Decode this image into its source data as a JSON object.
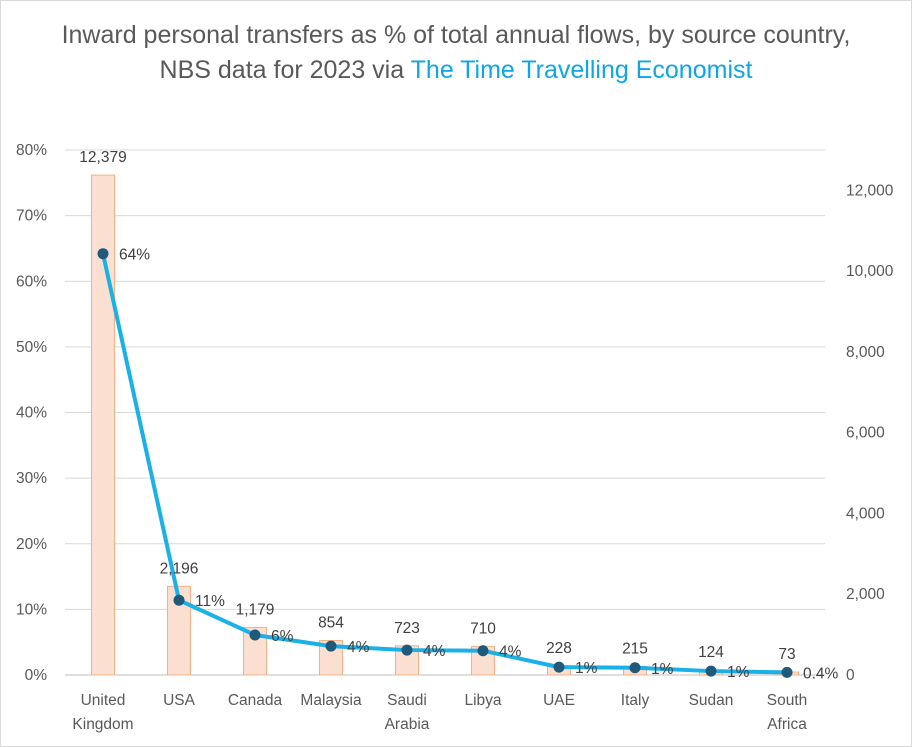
{
  "chart_data": {
    "type": "bar+line",
    "title": "Inward personal transfers as % of total annual flows, by source country, NBS data for 2023 via",
    "title_link": "The Time Travelling Economist",
    "categories": [
      [
        "United",
        "Kingdom"
      ],
      [
        "USA"
      ],
      [
        "Canada"
      ],
      [
        "Malaysia"
      ],
      [
        "Saudi",
        "Arabia"
      ],
      [
        "Libya"
      ],
      [
        "UAE"
      ],
      [
        "Italy"
      ],
      [
        "Sudan"
      ],
      [
        "South",
        "Africa"
      ]
    ],
    "bar_series": {
      "axis": "right",
      "values": [
        12379,
        2196,
        1179,
        854,
        723,
        710,
        228,
        215,
        124,
        73
      ],
      "labels": [
        "12,379",
        "2,196",
        "1,179",
        "854",
        "723",
        "710",
        "228",
        "215",
        "124",
        "73"
      ],
      "color": "#fbe0d1",
      "border": "#f4b183"
    },
    "line_series": {
      "axis": "left",
      "values": [
        64.2,
        11.4,
        6.1,
        4.4,
        3.8,
        3.7,
        1.2,
        1.1,
        0.6,
        0.4
      ],
      "labels": [
        "64%",
        "11%",
        "6%",
        "4%",
        "4%",
        "4%",
        "1%",
        "1%",
        "1%",
        "0.4%"
      ],
      "color": "#1ab0e8",
      "marker_color": "#1f5a7a"
    },
    "left_axis": {
      "min": 0,
      "max": 80,
      "ticks": [
        "0%",
        "10%",
        "20%",
        "30%",
        "40%",
        "50%",
        "60%",
        "70%",
        "80%"
      ]
    },
    "right_axis": {
      "min": 0,
      "max": 13000,
      "ticks": [
        "0",
        "2,000",
        "4,000",
        "6,000",
        "8,000",
        "10,000",
        "12,000"
      ]
    },
    "grid": true,
    "legend": "none"
  }
}
